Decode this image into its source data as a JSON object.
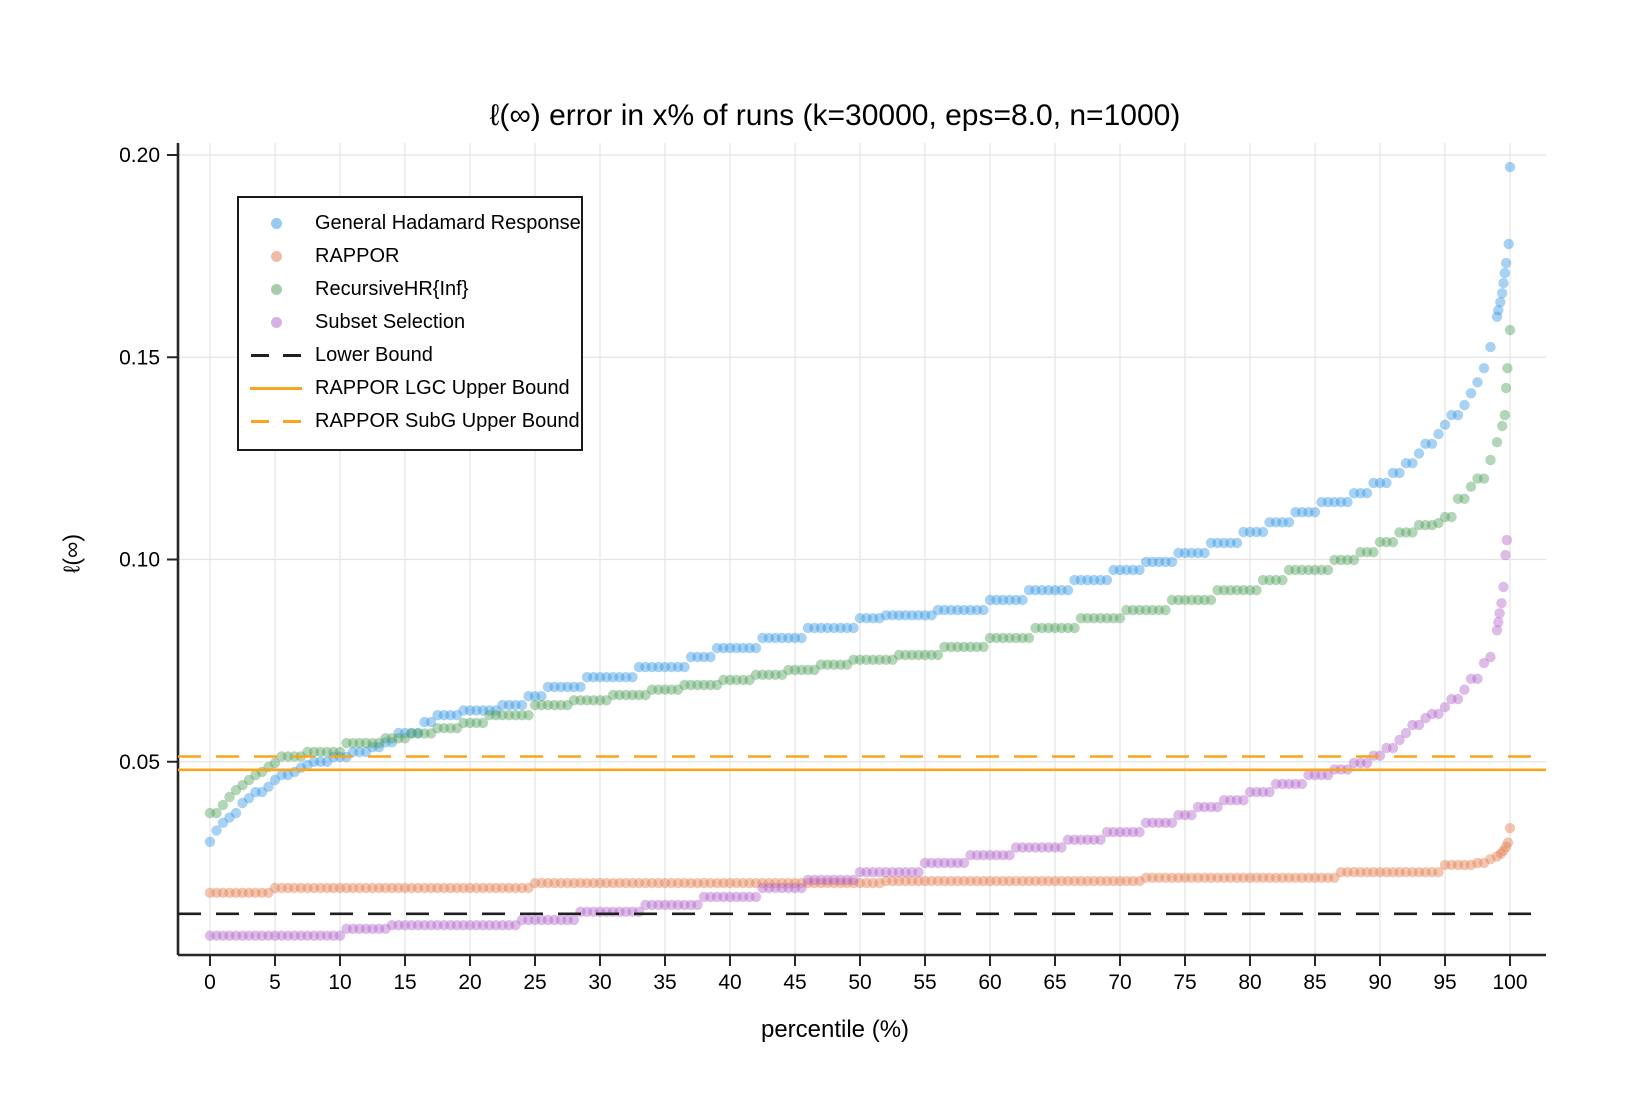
{
  "title": "ℓ(∞) error in x% of runs (k=30000, eps=8.0, n=1000)",
  "axes": {
    "xlabel": "percentile (%)",
    "ylabel": "ℓ(∞)",
    "x_ticks": [
      0,
      5,
      10,
      15,
      20,
      25,
      30,
      35,
      40,
      45,
      50,
      55,
      60,
      65,
      70,
      75,
      80,
      85,
      90,
      95,
      100
    ],
    "y_ticks": [
      {
        "v": 0.05,
        "label": "0.05"
      },
      {
        "v": 0.1,
        "label": "0.10"
      },
      {
        "v": 0.15,
        "label": "0.15"
      },
      {
        "v": 0.2,
        "label": "0.20"
      }
    ],
    "xlim": [
      -2.5,
      102.8
    ],
    "ylim": [
      0.002,
      0.203
    ],
    "grid": true
  },
  "colors": {
    "ghr_blue": "#2d93e3",
    "rappor_salmon": "#e27747",
    "recursive_green": "#4d9e55",
    "subset_purple": "#b05fc9",
    "orange_bound": "#F9A41B",
    "lower_bound_black": "#1f1f1f",
    "grid": "#e4e4e4",
    "axis": "#262626",
    "text": "#000000"
  },
  "legend": {
    "items": [
      {
        "label": "General Hadamard Response",
        "marker": "dot",
        "color_key": "ghr_blue"
      },
      {
        "label": "RAPPOR",
        "marker": "dot",
        "color_key": "rappor_salmon"
      },
      {
        "label": "RecursiveHR{Inf}",
        "marker": "dot",
        "color_key": "recursive_green"
      },
      {
        "label": "Subset Selection",
        "marker": "dot",
        "color_key": "subset_purple"
      },
      {
        "label": "Lower Bound",
        "marker": "dashed-line",
        "color_key": "lower_bound_black"
      },
      {
        "label": "RAPPOR LGC Upper Bound",
        "marker": "solid-line",
        "color_key": "orange_bound"
      },
      {
        "label": "RAPPOR SubG Upper Bound",
        "marker": "dashed-line",
        "color_key": "orange_bound"
      }
    ]
  },
  "chart_data": {
    "type": "scatter",
    "title": "ℓ(∞) error in x% of runs (k=30000, eps=8.0, n=1000)",
    "xlabel": "percentile (%)",
    "ylabel": "ℓ(∞)",
    "x_unit": "percentile",
    "dot_radius": 5.2,
    "dot_step": 0.5,
    "series": [
      {
        "name": "General Hadamard Response",
        "color_key": "ghr_blue",
        "alpha": 0.42,
        "dots_until": 99.0,
        "control_points": [
          [
            0,
            0.0302
          ],
          [
            0.5,
            0.033
          ],
          [
            1,
            0.0349
          ],
          [
            1.5,
            0.0362
          ],
          [
            2,
            0.0373
          ],
          [
            2.5,
            0.0398
          ],
          [
            3,
            0.041
          ],
          [
            3.5,
            0.0425
          ],
          [
            4.5,
            0.0438
          ],
          [
            5,
            0.0455
          ],
          [
            5.5,
            0.0467
          ],
          [
            6.5,
            0.0475
          ],
          [
            7,
            0.0485
          ],
          [
            7.5,
            0.0492
          ],
          [
            8,
            0.05
          ],
          [
            9.5,
            0.0512
          ],
          [
            11,
            0.0524
          ],
          [
            12.5,
            0.0536
          ],
          [
            13.5,
            0.0548
          ],
          [
            14.5,
            0.0571
          ],
          [
            16.5,
            0.0598
          ],
          [
            17.5,
            0.0615
          ],
          [
            19.5,
            0.0627
          ],
          [
            22.5,
            0.064
          ],
          [
            24.5,
            0.0662
          ],
          [
            26,
            0.0685
          ],
          [
            29,
            0.0709
          ],
          [
            33,
            0.0734
          ],
          [
            37,
            0.0759
          ],
          [
            39,
            0.0781
          ],
          [
            42.5,
            0.0806
          ],
          [
            46,
            0.0831
          ],
          [
            50,
            0.0855
          ],
          [
            52,
            0.0862
          ],
          [
            56,
            0.0875
          ],
          [
            60,
            0.09
          ],
          [
            63,
            0.0924
          ],
          [
            66.5,
            0.0949
          ],
          [
            69.5,
            0.0974
          ],
          [
            72,
            0.0994
          ],
          [
            74.5,
            0.1016
          ],
          [
            77,
            0.1041
          ],
          [
            79.5,
            0.1068
          ],
          [
            81.5,
            0.1092
          ],
          [
            83.5,
            0.1117
          ],
          [
            85.5,
            0.1142
          ],
          [
            88,
            0.1164
          ],
          [
            89.5,
            0.1189
          ],
          [
            91,
            0.1214
          ],
          [
            92,
            0.1238
          ],
          [
            93,
            0.1262
          ],
          [
            93.5,
            0.1286
          ],
          [
            94.5,
            0.131
          ],
          [
            95,
            0.1333
          ],
          [
            95.5,
            0.1357
          ],
          [
            96.5,
            0.1382
          ],
          [
            97,
            0.1411
          ],
          [
            97.5,
            0.1438
          ],
          [
            98,
            0.1473
          ],
          [
            98.5,
            0.1525
          ],
          [
            98.8,
            0.1575
          ],
          [
            99,
            0.16
          ]
        ],
        "outlier_dots": [
          [
            99.1,
            0.1616
          ],
          [
            99.25,
            0.1636
          ],
          [
            99.4,
            0.1658
          ],
          [
            99.5,
            0.1683
          ],
          [
            99.6,
            0.1708
          ],
          [
            99.7,
            0.1733
          ],
          [
            99.9,
            0.178
          ],
          [
            100,
            0.197
          ]
        ]
      },
      {
        "name": "RAPPOR",
        "color_key": "rappor_salmon",
        "alpha": 0.42,
        "dots_until": 98.8,
        "control_points": [
          [
            0,
            0.0176
          ],
          [
            5,
            0.0188
          ],
          [
            25,
            0.02
          ],
          [
            52,
            0.0205
          ],
          [
            72,
            0.0213
          ],
          [
            87,
            0.0227
          ],
          [
            95,
            0.0245
          ],
          [
            97.5,
            0.025
          ],
          [
            98.5,
            0.0259
          ]
        ],
        "outlier_dots": [
          [
            99,
            0.0266
          ],
          [
            99.3,
            0.0273
          ],
          [
            99.5,
            0.028
          ],
          [
            99.7,
            0.029
          ],
          [
            99.85,
            0.03
          ],
          [
            100,
            0.0336
          ]
        ]
      },
      {
        "name": "RecursiveHR{Inf}",
        "color_key": "recursive_green",
        "alpha": 0.42,
        "dots_until": 99.2,
        "control_points": [
          [
            0,
            0.0373
          ],
          [
            0.9,
            0.0393
          ],
          [
            1.4,
            0.0413
          ],
          [
            1.9,
            0.043
          ],
          [
            2.4,
            0.0442
          ],
          [
            2.9,
            0.0455
          ],
          [
            3.3,
            0.0467
          ],
          [
            3.9,
            0.0475
          ],
          [
            4.4,
            0.0487
          ],
          [
            5,
            0.0497
          ],
          [
            5.5,
            0.0513
          ],
          [
            7.5,
            0.0524
          ],
          [
            10.5,
            0.0546
          ],
          [
            13.5,
            0.0558
          ],
          [
            15.5,
            0.057
          ],
          [
            17.5,
            0.0583
          ],
          [
            19.5,
            0.0596
          ],
          [
            21.5,
            0.0615
          ],
          [
            25,
            0.064
          ],
          [
            28,
            0.0652
          ],
          [
            31,
            0.0665
          ],
          [
            34,
            0.0678
          ],
          [
            36.5,
            0.069
          ],
          [
            39.5,
            0.0702
          ],
          [
            42,
            0.0715
          ],
          [
            44.5,
            0.0727
          ],
          [
            47,
            0.074
          ],
          [
            49.5,
            0.0752
          ],
          [
            53,
            0.0764
          ],
          [
            56.5,
            0.0784
          ],
          [
            60,
            0.0806
          ],
          [
            63.5,
            0.0831
          ],
          [
            67,
            0.0855
          ],
          [
            70.5,
            0.0875
          ],
          [
            74,
            0.09
          ],
          [
            77.5,
            0.0924
          ],
          [
            81,
            0.0949
          ],
          [
            83,
            0.0974
          ],
          [
            86.5,
            0.0999
          ],
          [
            88.5,
            0.1018
          ],
          [
            90,
            0.1043
          ],
          [
            91.5,
            0.1067
          ],
          [
            93,
            0.1085
          ],
          [
            94.5,
            0.109
          ],
          [
            95,
            0.1105
          ],
          [
            96,
            0.115
          ],
          [
            97,
            0.118
          ],
          [
            97.5,
            0.12
          ],
          [
            98.2,
            0.1246
          ],
          [
            98.7,
            0.127
          ],
          [
            99,
            0.129
          ],
          [
            99.2,
            0.131
          ]
        ],
        "outlier_dots": [
          [
            99.4,
            0.133
          ],
          [
            99.6,
            0.1357
          ],
          [
            99.7,
            0.1424
          ],
          [
            99.8,
            0.1473
          ],
          [
            100,
            0.1567
          ]
        ]
      },
      {
        "name": "Subset Selection",
        "color_key": "subset_purple",
        "alpha": 0.42,
        "dots_until": 98.9,
        "control_points": [
          [
            0,
            0.007
          ],
          [
            10.5,
            0.0087
          ],
          [
            14,
            0.0096
          ],
          [
            24,
            0.0109
          ],
          [
            28.5,
            0.0129
          ],
          [
            33.5,
            0.0146
          ],
          [
            38,
            0.0166
          ],
          [
            42.5,
            0.0188
          ],
          [
            46,
            0.0208
          ],
          [
            50,
            0.0227
          ],
          [
            55,
            0.025
          ],
          [
            58.5,
            0.0269
          ],
          [
            62,
            0.0288
          ],
          [
            66,
            0.0307
          ],
          [
            69,
            0.0326
          ],
          [
            72,
            0.0349
          ],
          [
            74.5,
            0.0368
          ],
          [
            76,
            0.0388
          ],
          [
            78,
            0.0405
          ],
          [
            80,
            0.0425
          ],
          [
            82,
            0.0445
          ],
          [
            84.5,
            0.0467
          ],
          [
            86.5,
            0.0481
          ],
          [
            88,
            0.0497
          ],
          [
            89.5,
            0.0515
          ],
          [
            90.5,
            0.0534
          ],
          [
            91.2,
            0.0554
          ],
          [
            91.8,
            0.0571
          ],
          [
            92.5,
            0.0591
          ],
          [
            93.2,
            0.0608
          ],
          [
            94,
            0.0618
          ],
          [
            94.8,
            0.0635
          ],
          [
            95.5,
            0.0655
          ],
          [
            96.2,
            0.0678
          ],
          [
            97,
            0.0705
          ],
          [
            97.6,
            0.0727
          ],
          [
            98,
            0.0744
          ],
          [
            98.3,
            0.0759
          ],
          [
            98.6,
            0.0776
          ],
          [
            98.8,
            0.0793
          ],
          [
            98.9,
            0.0808
          ]
        ],
        "outlier_dots": [
          [
            99,
            0.0825
          ],
          [
            99.1,
            0.0845
          ],
          [
            99.2,
            0.0867
          ],
          [
            99.35,
            0.0892
          ],
          [
            99.5,
            0.0932
          ],
          [
            99.65,
            0.1011
          ],
          [
            99.75,
            0.1048
          ]
        ]
      }
    ],
    "reference_lines": [
      {
        "name": "lower-bound",
        "label": "Lower Bound",
        "value": 0.0124,
        "color_key": "lower_bound_black",
        "style": "dashed"
      },
      {
        "name": "rappor-lgc-upper-bound",
        "label": "RAPPOR LGC Upper Bound",
        "value": 0.048,
        "color_key": "orange_bound",
        "style": "solid"
      },
      {
        "name": "rappor-subg-upper-bound",
        "label": "RAPPOR SubG Upper Bound",
        "value": 0.0513,
        "color_key": "orange_bound",
        "style": "dashed"
      }
    ]
  }
}
